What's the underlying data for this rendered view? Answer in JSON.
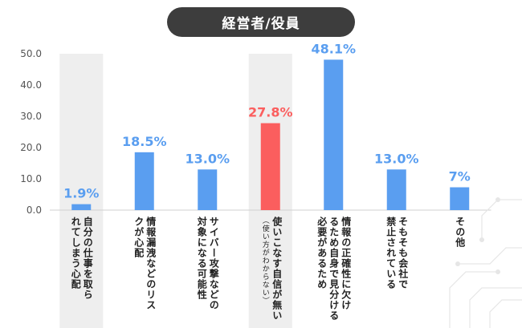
{
  "header": {
    "title": "経営者/役員"
  },
  "colors": {
    "bar": "#5a9ef0",
    "highlight": "#fb5e5e",
    "band": "#eeeeee",
    "label_blue": "#5a9ef0",
    "label_red": "#fb5e5e"
  },
  "chart_data": {
    "type": "bar",
    "title": "経営者/役員",
    "xlabel": "",
    "ylabel": "",
    "ylim": [
      0,
      50
    ],
    "yticks": [
      "0.0",
      "10.0",
      "20.0",
      "30.0",
      "40.0",
      "50.0"
    ],
    "grid": false,
    "categories": [
      {
        "lines": [
          "自分の仕事を取ら",
          "れてしまう心配"
        ],
        "sub": ""
      },
      {
        "lines": [
          "情報漏洩などのリス",
          "クが心配"
        ],
        "sub": ""
      },
      {
        "lines": [
          "サイバー攻撃などの",
          "対象になる可能性"
        ],
        "sub": ""
      },
      {
        "lines": [
          "使いこなす自信が無い"
        ],
        "sub": "（使い方がわからない）"
      },
      {
        "lines": [
          "情報の正確性に欠け",
          "るため自身で見分ける",
          "必要があるため"
        ],
        "sub": ""
      },
      {
        "lines": [
          "そもそも会社で",
          "禁止されている"
        ],
        "sub": ""
      },
      {
        "lines": [
          "その他"
        ],
        "sub": ""
      }
    ],
    "values": [
      1.9,
      18.5,
      13.0,
      27.8,
      48.1,
      13.0,
      7.3
    ],
    "data_labels": [
      "1.9%",
      "18.5%",
      "13.0%",
      "27.8%",
      "48.1%",
      "13.0%",
      "7%"
    ],
    "highlight_index": 3,
    "band_indices": [
      0,
      3
    ]
  }
}
